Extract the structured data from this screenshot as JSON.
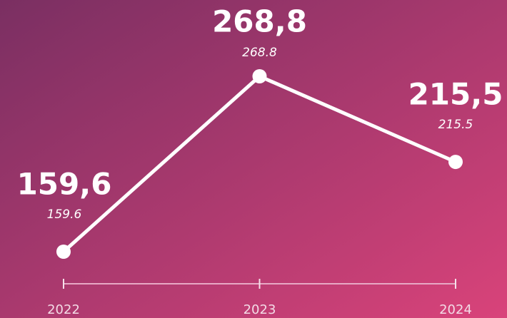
{
  "chart_data": {
    "type": "line",
    "categories": [
      "2022",
      "2023",
      "2024"
    ],
    "series": [
      {
        "color": "#ffffff",
        "values": [
          159.6,
          268.8,
          215.5
        ]
      }
    ],
    "value_labels": [
      "159,6",
      "268,8",
      "215,5"
    ]
  }
}
